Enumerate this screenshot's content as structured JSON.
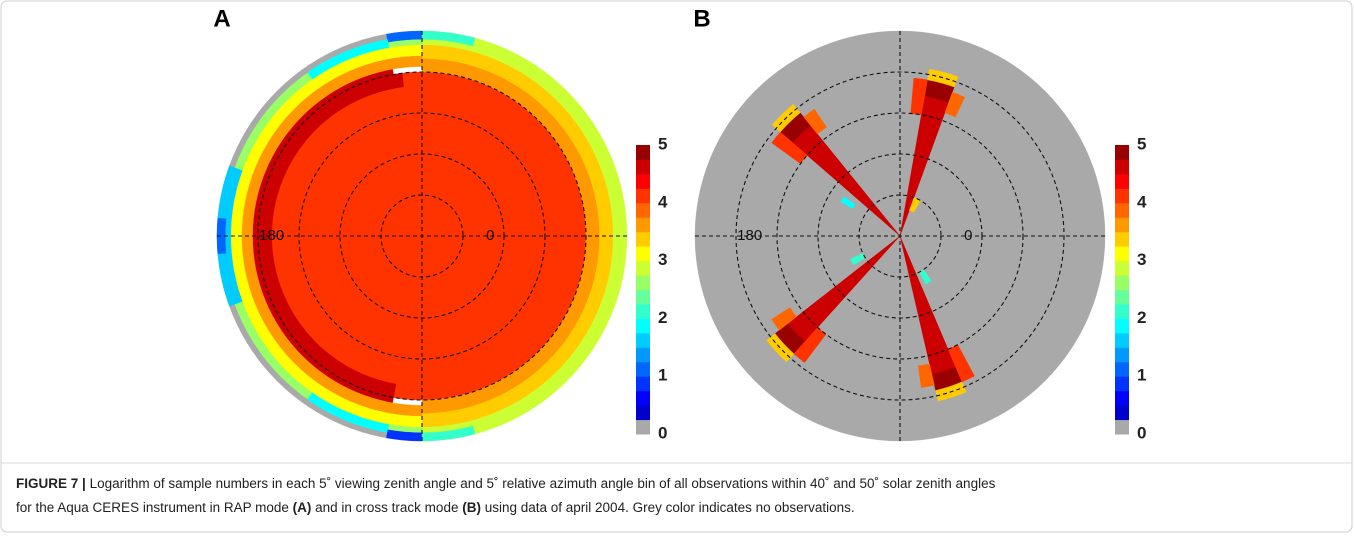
{
  "chart_data": [
    {
      "type": "polar-heatmap",
      "title": "A",
      "rlim": [
        0,
        75
      ],
      "rgrid": [
        15,
        30,
        45,
        60
      ],
      "thetaticks": [
        0,
        180
      ],
      "clim": [
        0,
        5
      ],
      "cticks": [
        0,
        1,
        2,
        3,
        4,
        5
      ],
      "cells": [
        [
          0,
          360,
          0,
          60,
          4.0
        ],
        [
          100,
          260,
          55,
          62,
          4.6
        ],
        [
          97,
          125,
          55,
          60,
          4.6
        ],
        [
          -90,
          90,
          60,
          65,
          3.7
        ],
        [
          -90,
          90,
          65,
          70,
          3.3
        ],
        [
          -90,
          90,
          70,
          75,
          2.9
        ],
        [
          90,
          270,
          62,
          66,
          3.7
        ],
        [
          90,
          270,
          66,
          70,
          3.2
        ],
        [
          90,
          270,
          70,
          73,
          2.6
        ],
        [
          90,
          270,
          73,
          75,
          0
        ],
        [
          90,
          100,
          72,
          75,
          1.0
        ],
        [
          100,
          125,
          70,
          73,
          1.9
        ],
        [
          160,
          200,
          70,
          75,
          1.5
        ],
        [
          175,
          185,
          72,
          75,
          1.0
        ],
        [
          235,
          260,
          70,
          73,
          1.8
        ],
        [
          260,
          270,
          72,
          75,
          0.8
        ],
        [
          75,
          90,
          72,
          75,
          2.2
        ],
        [
          270,
          285,
          72,
          75,
          2.2
        ]
      ]
    },
    {
      "type": "polar-heatmap",
      "title": "B",
      "rlim": [
        0,
        75
      ],
      "rgrid": [
        15,
        30,
        45,
        60
      ],
      "thetaticks": [
        0,
        180
      ],
      "clim": [
        0,
        5
      ],
      "cticks": [
        0,
        1,
        2,
        3,
        4,
        5
      ],
      "cells": [
        [
          0,
          360,
          0,
          75,
          0
        ],
        [
          70,
          80,
          0,
          52,
          4.6
        ],
        [
          70,
          80,
          52,
          58,
          4.9
        ],
        [
          80,
          85,
          45,
          58,
          4.2
        ],
        [
          65,
          70,
          48,
          56,
          3.8
        ],
        [
          70,
          80,
          58,
          62,
          3.3
        ],
        [
          -77,
          -67,
          0,
          52,
          4.6
        ],
        [
          -77,
          -67,
          52,
          58,
          4.9
        ],
        [
          -67,
          -62,
          45,
          58,
          4.2
        ],
        [
          -82,
          -77,
          48,
          56,
          3.8
        ],
        [
          -77,
          -67,
          58,
          62,
          3.3
        ],
        [
          129,
          139,
          0,
          52,
          4.6
        ],
        [
          129,
          139,
          52,
          58,
          4.9
        ],
        [
          139,
          144,
          45,
          58,
          4.2
        ],
        [
          124,
          129,
          48,
          56,
          3.8
        ],
        [
          129,
          139,
          58,
          62,
          3.3
        ],
        [
          218,
          228,
          0,
          52,
          4.6
        ],
        [
          218,
          228,
          52,
          58,
          4.9
        ],
        [
          228,
          233,
          45,
          58,
          4.2
        ],
        [
          213,
          218,
          48,
          56,
          3.8
        ],
        [
          218,
          228,
          58,
          62,
          3.3
        ],
        [
          60,
          70,
          10,
          15,
          3.3
        ],
        [
          -62,
          -55,
          15,
          20,
          2.2
        ],
        [
          145,
          150,
          20,
          25,
          1.8
        ],
        [
          205,
          212,
          15,
          20,
          2.0
        ]
      ]
    }
  ],
  "caption": {
    "label": "FIGURE 7 |",
    "line1": "Logarithm of sample numbers in each 5˚ viewing zenith angle and 5˚ relative azimuth angle bin of all observations within 40˚ and 50˚ solar zenith angles",
    "line2": [
      "for the Aqua CERES instrument in RAP mode ",
      "(A)",
      " and in cross track mode ",
      "(B)",
      " using data of april 2004. Grey color indicates no observations."
    ]
  }
}
